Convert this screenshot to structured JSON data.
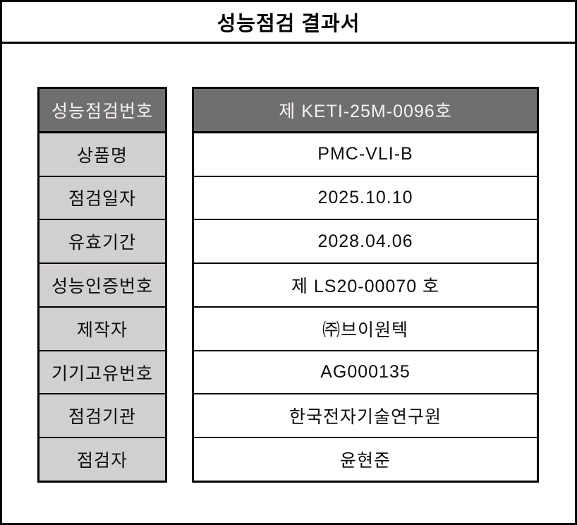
{
  "document": {
    "title": "성능점검 결과서"
  },
  "colors": {
    "page_bg": "#ffffff",
    "border": "#000000",
    "header_bg": "#716e6e",
    "header_text": "#f5f3f2",
    "label_bg": "#d2cfcf",
    "text": "#0d0d0d"
  },
  "table": {
    "rows": [
      {
        "label": "성능점검번호",
        "value": "제 KETI-25M-0096호"
      },
      {
        "label": "상품명",
        "value": "PMC-VLI-B"
      },
      {
        "label": "점검일자",
        "value": "2025.10.10"
      },
      {
        "label": "유효기간",
        "value": "2028.04.06"
      },
      {
        "label": "성능인증번호",
        "value": "제 LS20-00070 호"
      },
      {
        "label": "제작자",
        "value": "㈜브이원텍"
      },
      {
        "label": "기기고유번호",
        "value": "AG000135"
      },
      {
        "label": "점검기관",
        "value": "한국전자기술연구원"
      },
      {
        "label": "점검자",
        "value": "윤현준"
      }
    ]
  }
}
